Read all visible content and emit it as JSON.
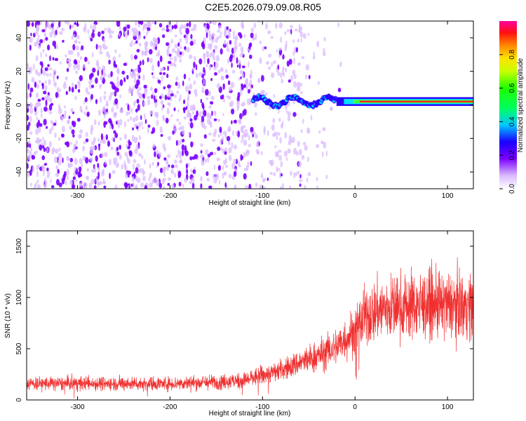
{
  "title": "C2E5.2026.079.09.08.R05",
  "colors": {
    "snr_line": "#f03030",
    "scatter_dark": "#7a00ff",
    "scatter_light": "#d9b8ff",
    "band_core": "#ff2020",
    "band_mid": "#00e0ff",
    "band_edge": "#2a00ff"
  },
  "chart_data": [
    {
      "type": "heatmap",
      "xlabel": "Height of straight line (km)",
      "ylabel": "Frequency (Hz)",
      "xlim": [
        -355,
        128
      ],
      "ylim": [
        -50,
        50
      ],
      "xticks": [
        -300,
        -200,
        -100,
        0,
        100
      ],
      "yticks": [
        -40,
        -20,
        0,
        20,
        40
      ],
      "colorbar": {
        "label": "Normalized spectral amplitude",
        "range": [
          0,
          1
        ],
        "ticks": [
          0,
          0.2,
          0.4,
          0.6,
          0.8
        ]
      },
      "band": {
        "center_freq_hz": 2,
        "x_start": -110,
        "x_end": 128
      }
    },
    {
      "type": "line",
      "xlabel": "Height of straight line (km)",
      "ylabel": "SNR (10 * v/v)",
      "xlim": [
        -355,
        128
      ],
      "ylim": [
        0,
        1650
      ],
      "xticks": [
        -300,
        -200,
        -100,
        0,
        100
      ],
      "yticks": [
        0,
        500,
        1000,
        1500
      ],
      "series": [
        {
          "x": [
            -350,
            -300,
            -250,
            -200,
            -150,
            -120,
            -100,
            -80,
            -60,
            -40,
            -20,
            0,
            10,
            25,
            50,
            75,
            100,
            125
          ],
          "values": [
            160,
            160,
            160,
            160,
            175,
            190,
            240,
            290,
            360,
            430,
            520,
            680,
            800,
            880,
            910,
            930,
            920,
            930
          ]
        }
      ]
    }
  ]
}
